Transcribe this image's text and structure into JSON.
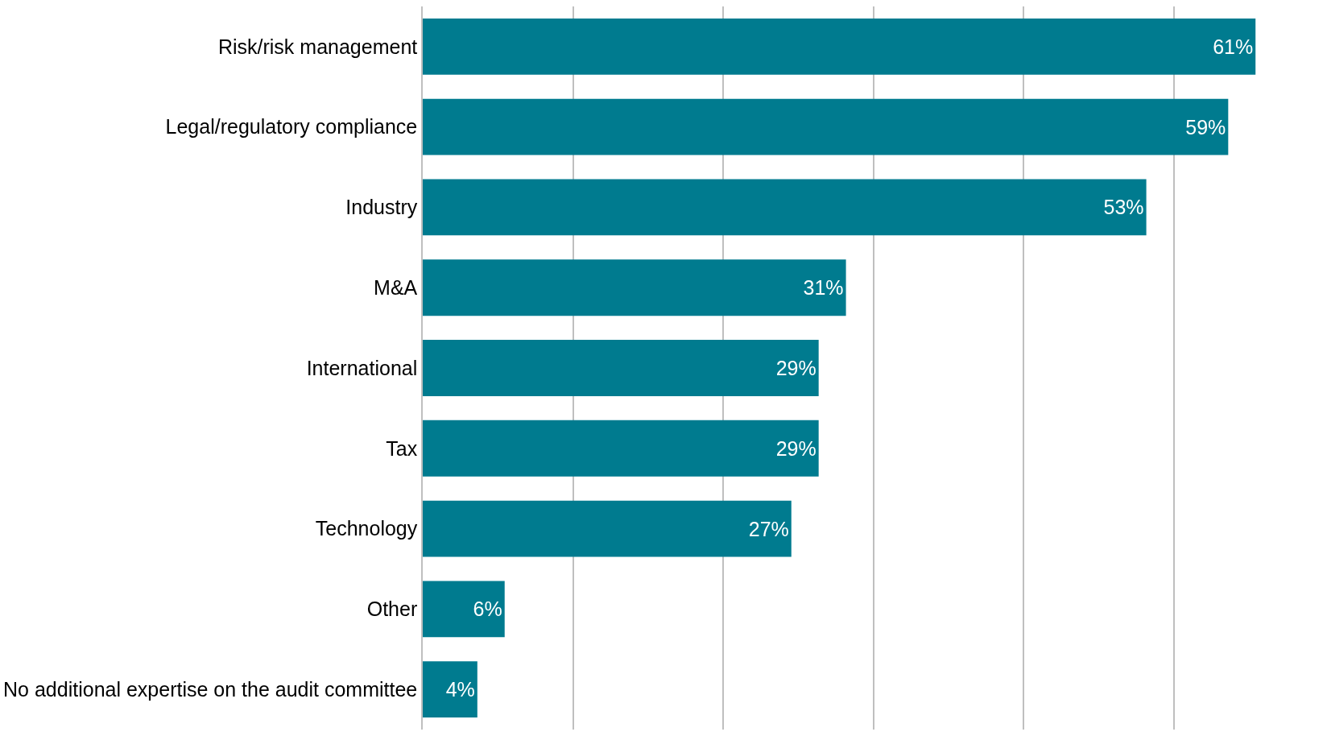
{
  "chart_data": {
    "type": "bar",
    "orientation": "horizontal",
    "categories": [
      "Risk/risk management",
      "Legal/regulatory compliance",
      "Industry",
      "M&A",
      "International",
      "Tax",
      "Technology",
      "Other",
      "No additional expertise on the audit committee"
    ],
    "values": [
      61,
      59,
      53,
      31,
      29,
      29,
      27,
      6,
      4
    ],
    "value_labels": [
      "61%",
      "59%",
      "53%",
      "31%",
      "29%",
      "29%",
      "27%",
      "6%",
      "4%"
    ],
    "color": "#007b8f",
    "xlim": [
      0,
      66
    ],
    "xticks": [
      {
        "value": 0,
        "label": null
      },
      {
        "value": 11,
        "label": null
      },
      {
        "value": 22,
        "label": null
      },
      {
        "value": 33,
        "label": null
      },
      {
        "value": 44,
        "label": null
      },
      {
        "value": 55,
        "label": null
      },
      {
        "value": 66,
        "label": null
      }
    ],
    "grid": "x",
    "tick_labels": "y",
    "legend": false
  }
}
